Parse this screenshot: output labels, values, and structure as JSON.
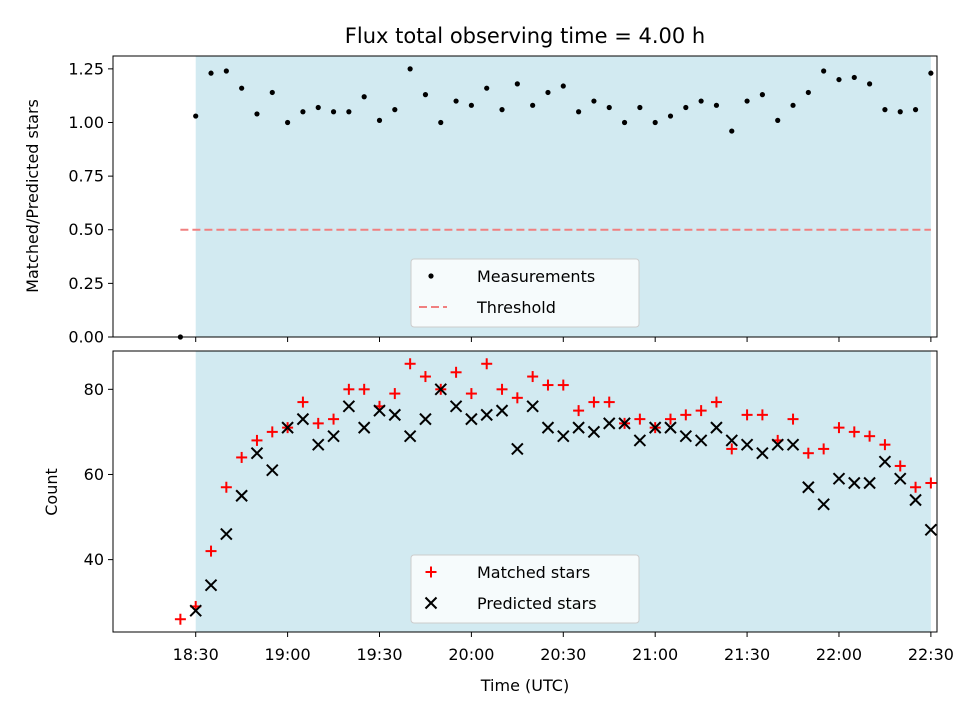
{
  "chart_data": {
    "title": "Flux total observing time = 4.00 h",
    "xlabel": "Time (UTC)",
    "x_unit": "minutes since 18:00 UTC",
    "xlim": [
      3,
      272
    ],
    "x_ticks": [
      {
        "value": 30,
        "label": "18:30"
      },
      {
        "value": 60,
        "label": "19:00"
      },
      {
        "value": 90,
        "label": "19:30"
      },
      {
        "value": 120,
        "label": "20:00"
      },
      {
        "value": 150,
        "label": "20:30"
      },
      {
        "value": 180,
        "label": "21:00"
      },
      {
        "value": 210,
        "label": "21:30"
      },
      {
        "value": 240,
        "label": "22:00"
      },
      {
        "value": 270,
        "label": "22:30"
      }
    ],
    "observing_window": [
      30,
      270
    ],
    "shade_color": "#add8e6",
    "panels": [
      {
        "id": "ratio",
        "type": "scatter",
        "ylabel": "Matched/Predicted stars",
        "ylim": [
          0,
          1.31
        ],
        "y_ticks": [
          {
            "value": 0,
            "label": "0.00"
          },
          {
            "value": 0.25,
            "label": "0.25"
          },
          {
            "value": 0.5,
            "label": "0.50"
          },
          {
            "value": 0.75,
            "label": "0.75"
          },
          {
            "value": 1.0,
            "label": "1.00"
          },
          {
            "value": 1.25,
            "label": "1.25"
          }
        ],
        "threshold": {
          "label": "Threshold",
          "value": 0.5,
          "x_range": [
            25,
            270
          ],
          "color": "#f08080"
        },
        "series": [
          {
            "name": "Measurements",
            "marker": "dot",
            "color": "#000000",
            "points": [
              [
                25,
                0.0
              ],
              [
                30,
                1.03
              ],
              [
                35,
                1.23
              ],
              [
                40,
                1.24
              ],
              [
                45,
                1.16
              ],
              [
                50,
                1.04
              ],
              [
                55,
                1.14
              ],
              [
                60,
                1.0
              ],
              [
                65,
                1.05
              ],
              [
                70,
                1.07
              ],
              [
                75,
                1.05
              ],
              [
                80,
                1.05
              ],
              [
                85,
                1.12
              ],
              [
                90,
                1.01
              ],
              [
                95,
                1.06
              ],
              [
                100,
                1.25
              ],
              [
                105,
                1.13
              ],
              [
                110,
                1.0
              ],
              [
                115,
                1.1
              ],
              [
                120,
                1.08
              ],
              [
                125,
                1.16
              ],
              [
                130,
                1.06
              ],
              [
                135,
                1.18
              ],
              [
                140,
                1.08
              ],
              [
                145,
                1.14
              ],
              [
                150,
                1.17
              ],
              [
                155,
                1.05
              ],
              [
                160,
                1.1
              ],
              [
                165,
                1.07
              ],
              [
                170,
                1.0
              ],
              [
                175,
                1.07
              ],
              [
                180,
                1.0
              ],
              [
                185,
                1.03
              ],
              [
                190,
                1.07
              ],
              [
                195,
                1.1
              ],
              [
                200,
                1.08
              ],
              [
                205,
                0.96
              ],
              [
                210,
                1.1
              ],
              [
                215,
                1.13
              ],
              [
                220,
                1.01
              ],
              [
                225,
                1.08
              ],
              [
                230,
                1.14
              ],
              [
                235,
                1.24
              ],
              [
                240,
                1.2
              ],
              [
                245,
                1.21
              ],
              [
                250,
                1.18
              ],
              [
                255,
                1.06
              ],
              [
                260,
                1.05
              ],
              [
                265,
                1.06
              ],
              [
                270,
                1.23
              ]
            ]
          }
        ],
        "legend": {
          "placement": "lower-center",
          "entries": [
            "Measurements",
            "Threshold"
          ]
        }
      },
      {
        "id": "count",
        "type": "scatter",
        "ylabel": "Count",
        "ylim": [
          23,
          89
        ],
        "y_ticks": [
          {
            "value": 40,
            "label": "40"
          },
          {
            "value": 60,
            "label": "60"
          },
          {
            "value": 80,
            "label": "80"
          }
        ],
        "series": [
          {
            "name": "Matched stars",
            "marker": "plus",
            "color": "#ff0000",
            "points": [
              [
                25,
                26
              ],
              [
                30,
                29
              ],
              [
                35,
                42
              ],
              [
                40,
                57
              ],
              [
                45,
                64
              ],
              [
                50,
                68
              ],
              [
                55,
                70
              ],
              [
                60,
                71
              ],
              [
                65,
                77
              ],
              [
                70,
                72
              ],
              [
                75,
                73
              ],
              [
                80,
                80
              ],
              [
                85,
                80
              ],
              [
                90,
                76
              ],
              [
                95,
                79
              ],
              [
                100,
                86
              ],
              [
                105,
                83
              ],
              [
                110,
                80
              ],
              [
                115,
                84
              ],
              [
                120,
                79
              ],
              [
                125,
                86
              ],
              [
                130,
                80
              ],
              [
                135,
                78
              ],
              [
                140,
                83
              ],
              [
                145,
                81
              ],
              [
                150,
                81
              ],
              [
                155,
                75
              ],
              [
                160,
                77
              ],
              [
                165,
                77
              ],
              [
                170,
                72
              ],
              [
                175,
                73
              ],
              [
                180,
                71
              ],
              [
                185,
                73
              ],
              [
                190,
                74
              ],
              [
                195,
                75
              ],
              [
                200,
                77
              ],
              [
                205,
                66
              ],
              [
                210,
                74
              ],
              [
                215,
                74
              ],
              [
                220,
                68
              ],
              [
                225,
                73
              ],
              [
                230,
                65
              ],
              [
                235,
                66
              ],
              [
                240,
                71
              ],
              [
                245,
                70
              ],
              [
                250,
                69
              ],
              [
                255,
                67
              ],
              [
                260,
                62
              ],
              [
                265,
                57
              ],
              [
                270,
                58
              ]
            ]
          },
          {
            "name": "Predicted stars",
            "marker": "x",
            "color": "#000000",
            "points": [
              [
                30,
                28
              ],
              [
                35,
                34
              ],
              [
                40,
                46
              ],
              [
                45,
                55
              ],
              [
                50,
                65
              ],
              [
                55,
                61
              ],
              [
                60,
                71
              ],
              [
                65,
                73
              ],
              [
                70,
                67
              ],
              [
                75,
                69
              ],
              [
                80,
                76
              ],
              [
                85,
                71
              ],
              [
                90,
                75
              ],
              [
                95,
                74
              ],
              [
                100,
                69
              ],
              [
                105,
                73
              ],
              [
                110,
                80
              ],
              [
                115,
                76
              ],
              [
                120,
                73
              ],
              [
                125,
                74
              ],
              [
                130,
                75
              ],
              [
                135,
                66
              ],
              [
                140,
                76
              ],
              [
                145,
                71
              ],
              [
                150,
                69
              ],
              [
                155,
                71
              ],
              [
                160,
                70
              ],
              [
                165,
                72
              ],
              [
                170,
                72
              ],
              [
                175,
                68
              ],
              [
                180,
                71
              ],
              [
                185,
                71
              ],
              [
                190,
                69
              ],
              [
                195,
                68
              ],
              [
                200,
                71
              ],
              [
                205,
                68
              ],
              [
                210,
                67
              ],
              [
                215,
                65
              ],
              [
                220,
                67
              ],
              [
                225,
                67
              ],
              [
                230,
                57
              ],
              [
                235,
                53
              ],
              [
                240,
                59
              ],
              [
                245,
                58
              ],
              [
                250,
                58
              ],
              [
                255,
                63
              ],
              [
                260,
                59
              ],
              [
                265,
                54
              ],
              [
                270,
                47
              ]
            ]
          }
        ],
        "legend": {
          "placement": "lower-center",
          "entries": [
            "Matched stars",
            "Predicted stars"
          ]
        }
      }
    ]
  }
}
